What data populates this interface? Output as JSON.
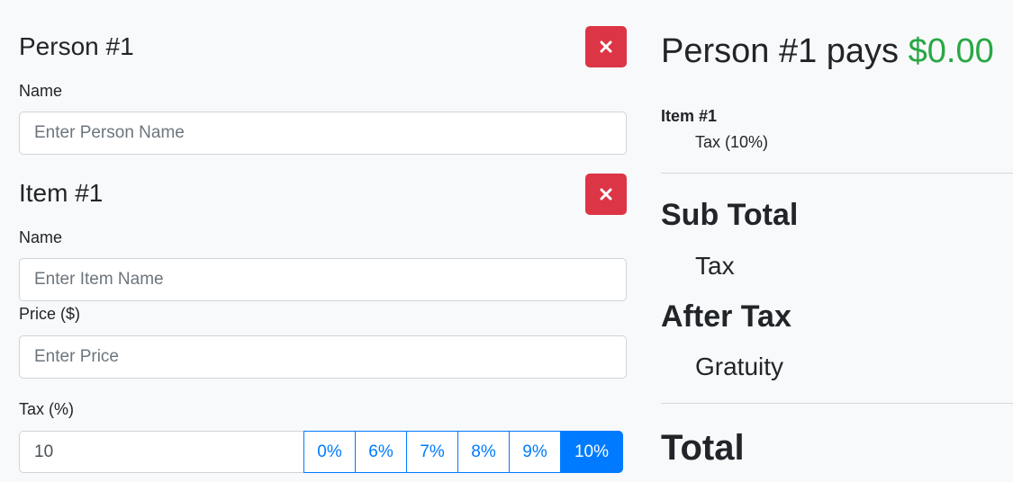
{
  "person": {
    "title": "Person #1",
    "name_label": "Name",
    "name_placeholder": "Enter Person Name",
    "name_value": ""
  },
  "item": {
    "title": "Item #1",
    "name_label": "Name",
    "name_placeholder": "Enter Item Name",
    "name_value": "",
    "price_label": "Price ($)",
    "price_placeholder": "Enter Price",
    "price_value": "",
    "tax_label": "Tax (%)",
    "tax_value": "10",
    "tax_options": [
      "0%",
      "6%",
      "7%",
      "8%",
      "9%",
      "10%"
    ],
    "tax_selected": "10%"
  },
  "summary": {
    "pays_prefix": "Person #1 pays",
    "pays_amount": "$0.00",
    "item_name": "Item #1",
    "item_tax": "Tax (10%)",
    "subtotal_label": "Sub Total",
    "tax_label": "Tax",
    "after_tax_label": "After Tax",
    "gratuity_label": "Gratuity",
    "total_label": "Total"
  },
  "colors": {
    "danger": "#dc3545",
    "primary": "#007bff",
    "success": "#28a745"
  },
  "icons": {
    "remove": "close-icon"
  }
}
